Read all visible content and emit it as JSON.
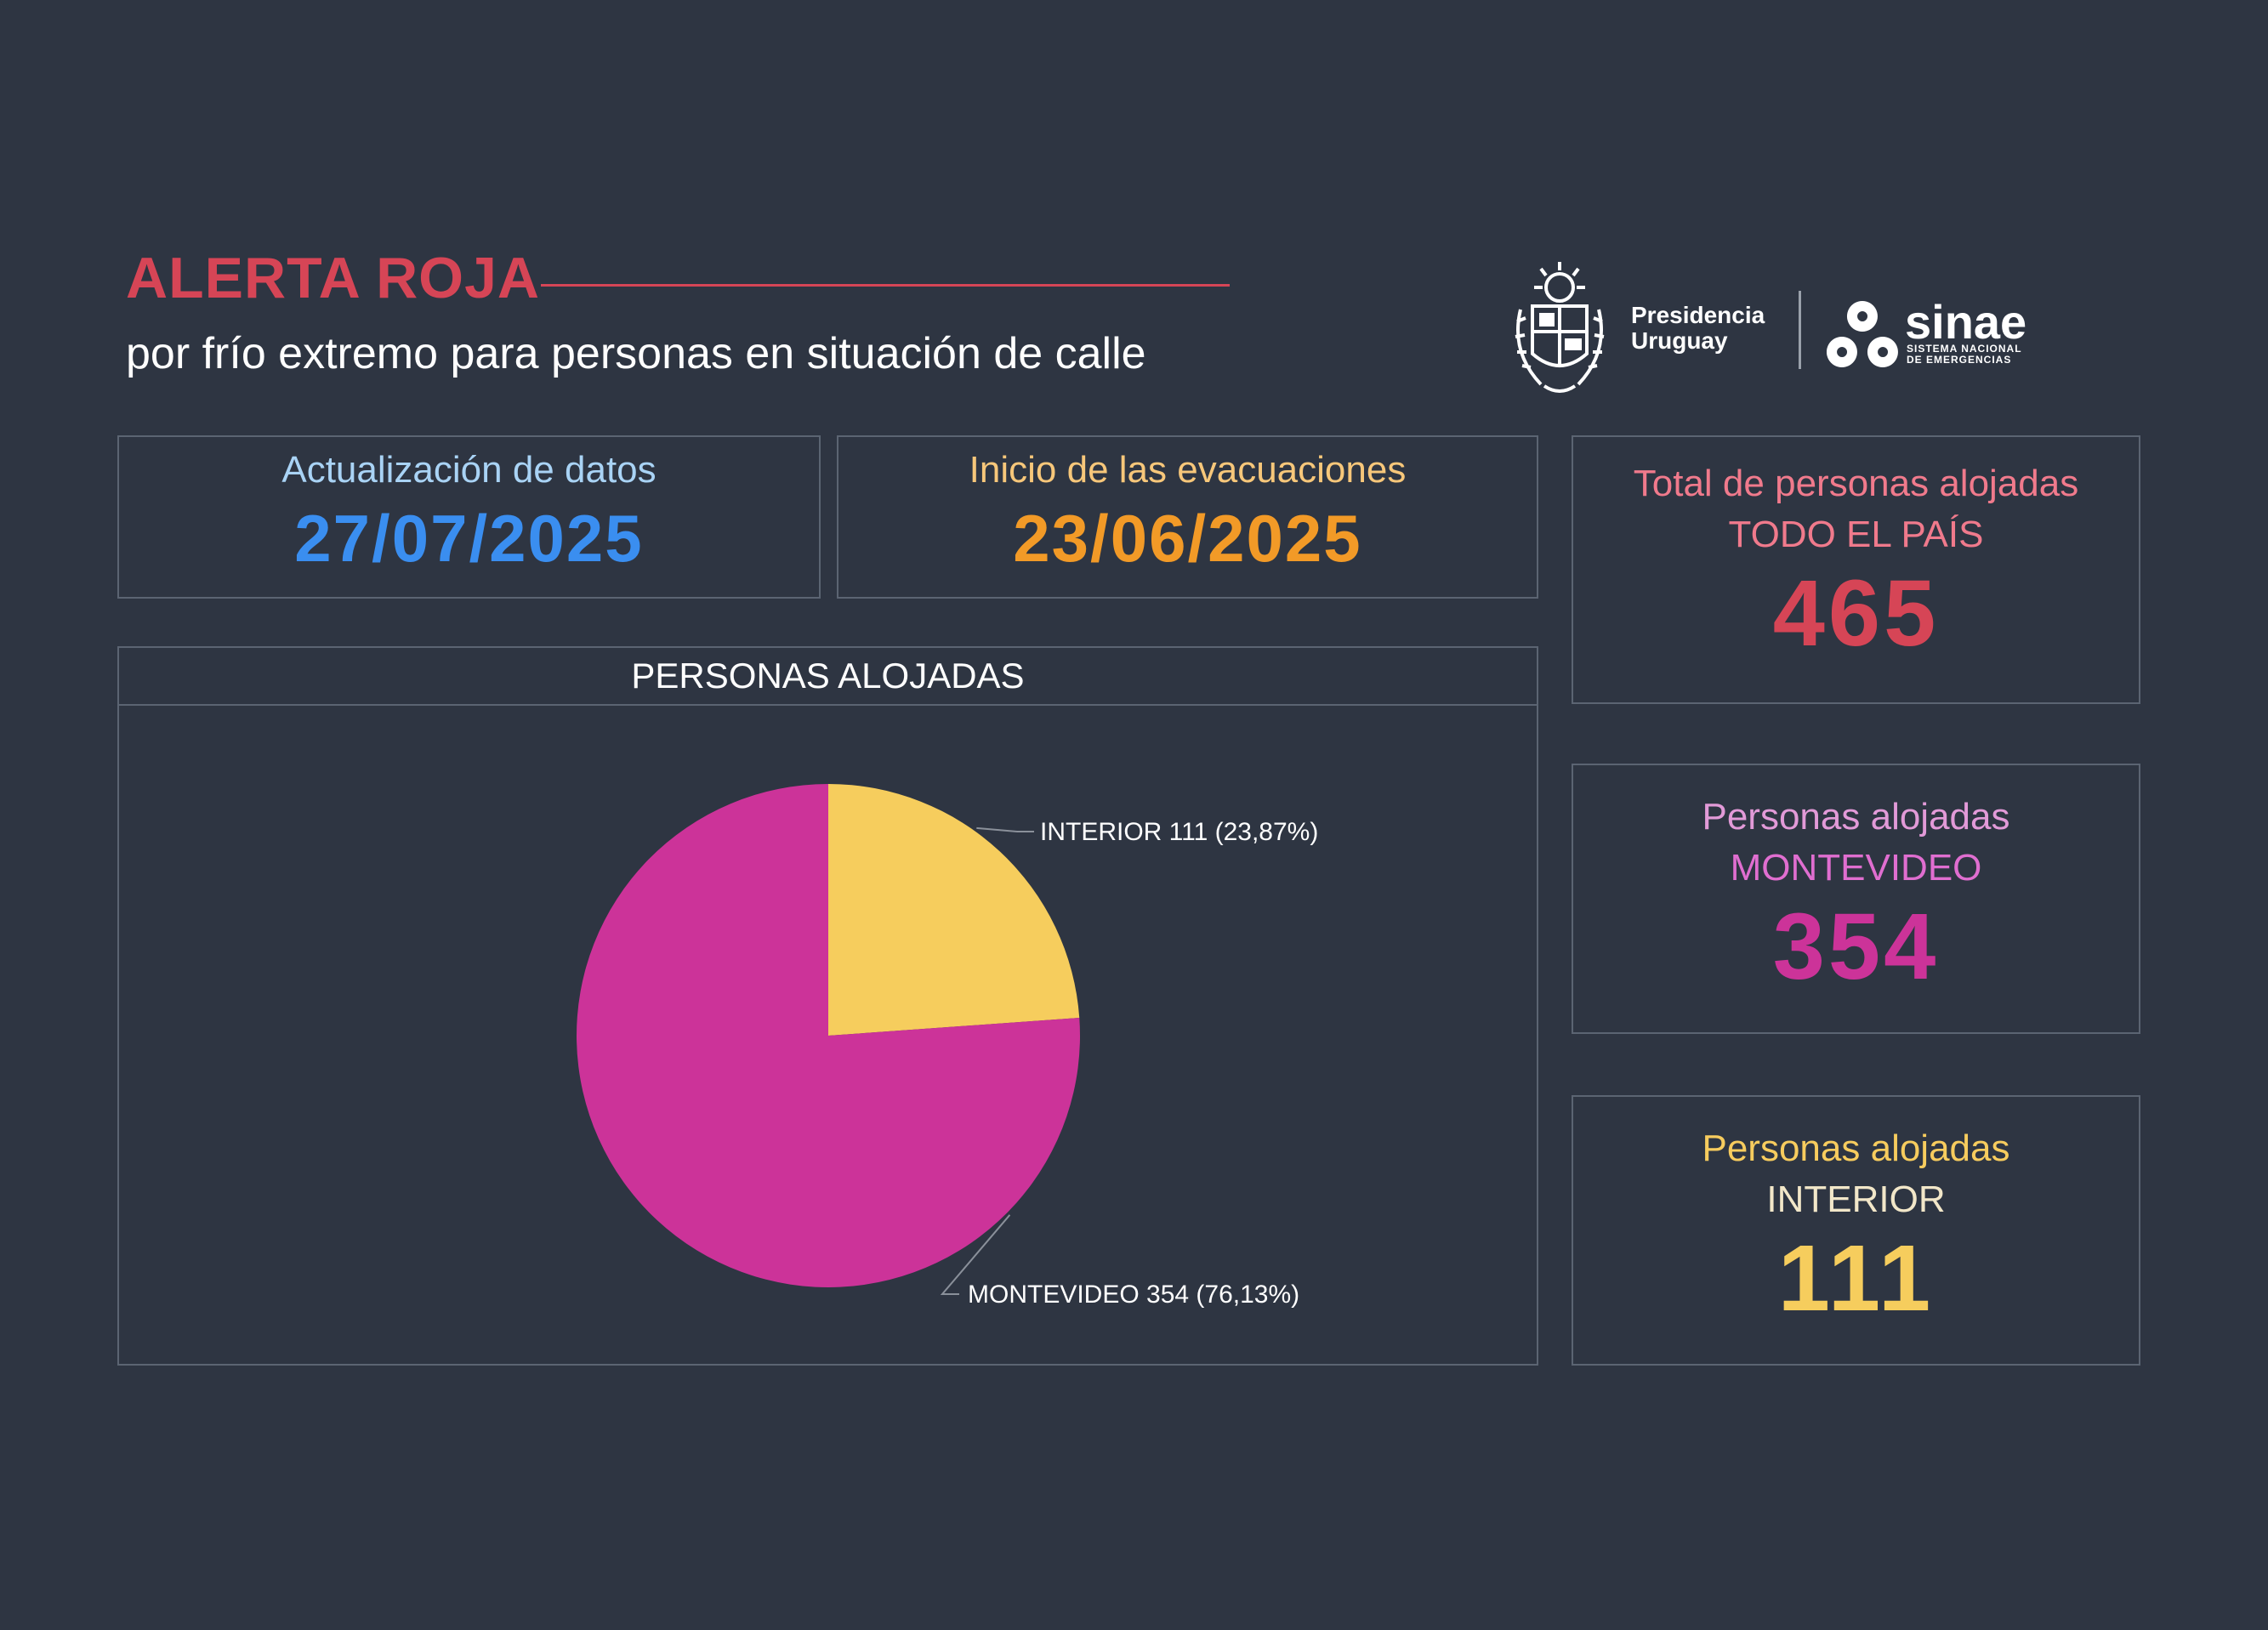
{
  "header": {
    "title": "ALERTA ROJA",
    "subtitle": "por frío extremo para personas en situación de calle"
  },
  "logos": {
    "presidencia_line1": "Presidencia",
    "presidencia_line2": "Uruguay",
    "sinae_name": "sinae",
    "sinae_sub1": "SISTEMA NACIONAL",
    "sinae_sub2": "DE EMERGENCIAS"
  },
  "cards": {
    "update": {
      "label": "Actualización de datos",
      "value": "27/07/2025",
      "label_color": "#a9d3f5",
      "value_color": "#3a8ef0"
    },
    "start": {
      "label": "Inicio de las evacuaciones",
      "value": "23/06/2025",
      "label_color": "#f7c77a",
      "value_color": "#f29a27"
    }
  },
  "totals": {
    "total": {
      "label": "Total de personas alojadas",
      "sub": "TODO EL PAÍS",
      "value": "465",
      "label_color": "#f07a8c",
      "sub_color": "#f07a8c",
      "value_color": "#d64556"
    },
    "montevideo": {
      "label": "Personas alojadas",
      "sub": "MONTEVIDEO",
      "value": "354",
      "label_color": "#e29ad8",
      "sub_color": "#e06ed0",
      "value_color": "#cc3399"
    },
    "interior": {
      "label": "Personas alojadas",
      "sub": "INTERIOR",
      "value": "111",
      "label_color": "#f7cc5e",
      "sub_color": "#f2e7c9",
      "value_color": "#f6cd5d"
    }
  },
  "chart_data": {
    "type": "pie",
    "title": "PERSONAS ALOJADAS",
    "categories": [
      "INTERIOR",
      "MONTEVIDEO"
    ],
    "values": [
      111,
      354
    ],
    "percentages": [
      23.87,
      76.13
    ],
    "labels": [
      "INTERIOR 111 (23,87%)",
      "MONTEVIDEO 354 (76,13%)"
    ],
    "colors": [
      "#f6cd5d",
      "#cc3399"
    ]
  }
}
